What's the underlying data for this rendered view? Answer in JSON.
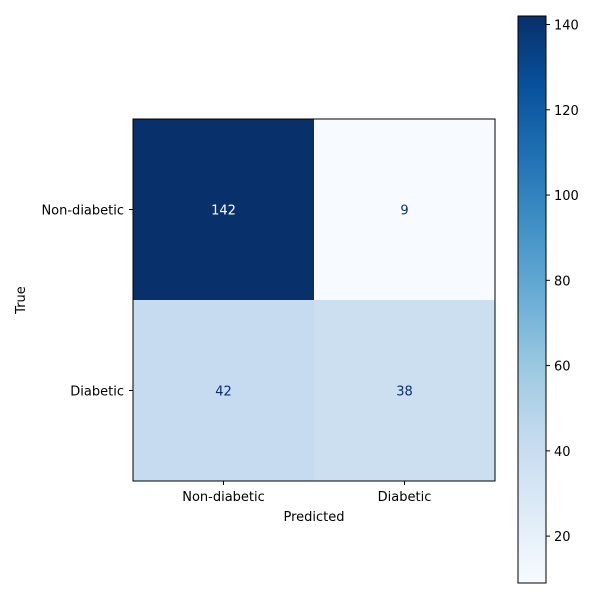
{
  "chart_data": {
    "type": "heatmap",
    "title": "",
    "xlabel": "Predicted",
    "ylabel": "True",
    "x_categories": [
      "Non-diabetic",
      "Diabetic"
    ],
    "y_categories": [
      "Non-diabetic",
      "Diabetic"
    ],
    "values": [
      [
        142,
        9
      ],
      [
        42,
        38
      ]
    ],
    "colormap": "Blues",
    "color_range": [
      9,
      142
    ],
    "colorbar": {
      "ticks": [
        20,
        40,
        60,
        80,
        100,
        120,
        140
      ],
      "tick_labels": [
        "20",
        "40",
        "60",
        "80",
        "100",
        "120",
        "140"
      ]
    },
    "grid": false
  },
  "colors": {
    "low": "#f7fbff",
    "high": "#08306b",
    "text_on_dark": "#ffffff",
    "text_on_light": "#08306b",
    "axis": "#000000"
  }
}
